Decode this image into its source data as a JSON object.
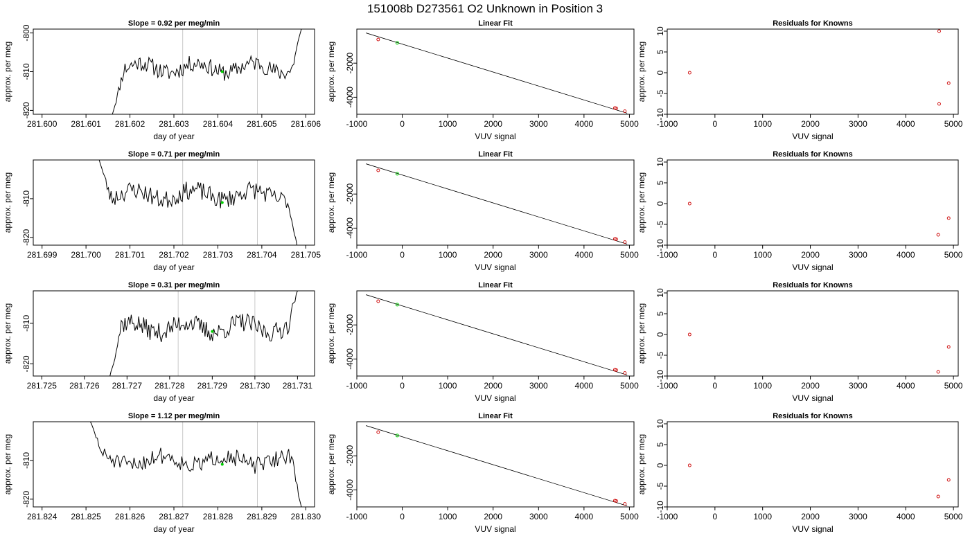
{
  "title": "151008b      D273561    O2 Unknown in Position  3",
  "colors": {
    "trace": "#000000",
    "marker": "#00cc00",
    "known": "#cc0000",
    "vline": "#c8c8c8"
  },
  "chart_data": [
    {
      "type": "line",
      "panel": "drift",
      "row": 0,
      "title": "Slope =  0.92  per meg/min",
      "xlabel": "day of year",
      "ylabel": "approx. per meg",
      "xlim": [
        281.5998,
        281.6062
      ],
      "ylim": [
        -821,
        -799
      ],
      "xticks": [
        281.6,
        281.601,
        281.602,
        281.603,
        281.604,
        281.605,
        281.606
      ],
      "xtick_labels": [
        "281.600",
        "281.601",
        "281.602",
        "281.603",
        "281.604",
        "281.605",
        "281.606"
      ],
      "yticks": [
        -800,
        -810,
        -820
      ],
      "ytick_labels": [
        "-800",
        "-810",
        "-820"
      ],
      "vlines": [
        281.6032,
        281.6049
      ],
      "trace": {
        "start": 281.6016,
        "end": 281.6059,
        "start_y": -821,
        "end_y": -799,
        "mean": -809,
        "amp": 2.2,
        "seed": 11
      },
      "marker": {
        "x": 281.6041,
        "y": -810
      }
    },
    {
      "type": "line",
      "panel": "drift",
      "row": 1,
      "title": "Slope =  0.71  per meg/min",
      "xlabel": "day of year",
      "ylabel": "approx. per meg",
      "xlim": [
        281.6988,
        281.7052
      ],
      "ylim": [
        -822,
        -800
      ],
      "xticks": [
        281.699,
        281.7,
        281.701,
        281.702,
        281.703,
        281.704,
        281.705
      ],
      "xtick_labels": [
        "281.699",
        "281.700",
        "281.701",
        "281.702",
        "281.703",
        "281.704",
        "281.705"
      ],
      "yticks": [
        -810,
        -820
      ],
      "ytick_labels": [
        "-810",
        "-820"
      ],
      "vlines": [
        281.7022,
        281.7039
      ],
      "trace": {
        "start": 281.7003,
        "end": 281.7048,
        "start_y": -800,
        "end_y": -822,
        "mean": -809,
        "amp": 2.4,
        "seed": 23
      },
      "marker": {
        "x": 281.7031,
        "y": -811
      }
    },
    {
      "type": "line",
      "panel": "drift",
      "row": 2,
      "title": "Slope =  0.31  per meg/min",
      "xlabel": "day of year",
      "ylabel": "approx. per meg",
      "xlim": [
        281.7248,
        281.7314
      ],
      "ylim": [
        -823,
        -802
      ],
      "xticks": [
        281.725,
        281.726,
        281.727,
        281.728,
        281.729,
        281.73,
        281.731
      ],
      "xtick_labels": [
        "281.725",
        "281.726",
        "281.727",
        "281.728",
        "281.729",
        "281.730",
        "281.731"
      ],
      "yticks": [
        -810,
        -820
      ],
      "ytick_labels": [
        "-810",
        "-820"
      ],
      "vlines": [
        281.7282,
        281.73
      ],
      "trace": {
        "start": 281.7266,
        "end": 281.731,
        "start_y": -823,
        "end_y": -802,
        "mean": -811,
        "amp": 2.4,
        "seed": 37
      },
      "marker": {
        "x": 281.729,
        "y": -812
      }
    },
    {
      "type": "line",
      "panel": "drift",
      "row": 3,
      "title": "Slope =  1.12  per meg/min",
      "xlabel": "day of year",
      "ylabel": "approx. per meg",
      "xlim": [
        281.8238,
        281.8302
      ],
      "ylim": [
        -822,
        -800
      ],
      "xticks": [
        281.824,
        281.825,
        281.826,
        281.827,
        281.828,
        281.829,
        281.83
      ],
      "xtick_labels": [
        "281.824",
        "281.825",
        "281.826",
        "281.827",
        "281.828",
        "281.829",
        "281.830"
      ],
      "yticks": [
        -810,
        -820
      ],
      "ytick_labels": [
        "-810",
        "-820"
      ],
      "vlines": [
        281.8272,
        281.8289
      ],
      "trace": {
        "start": 281.8251,
        "end": 281.8299,
        "start_y": -800,
        "end_y": -822,
        "mean": -810,
        "amp": 2.2,
        "seed": 51
      },
      "marker": {
        "x": 281.8281,
        "y": -811
      }
    },
    {
      "type": "scatter",
      "panel": "fit",
      "row": 0,
      "title": "Linear Fit",
      "xlabel": "VUV signal",
      "ylabel": "approx. per meg",
      "xlim": [
        -1000,
        5100
      ],
      "ylim": [
        -5000,
        0
      ],
      "xticks": [
        -1000,
        0,
        1000,
        2000,
        3000,
        4000,
        5000
      ],
      "xtick_labels": [
        "-1000",
        "0",
        "1000",
        "2000",
        "3000",
        "4000",
        "5000"
      ],
      "yticks": [
        -2000,
        -4000
      ],
      "ytick_labels": [
        "-2000",
        "-4000"
      ],
      "line": {
        "x": [
          -800,
          4950
        ],
        "y": [
          -226,
          -4940
        ]
      },
      "knowns": {
        "x": [
          -530,
          4680,
          4710,
          4900
        ],
        "y": [
          -610,
          -4630,
          -4650,
          -4820
        ]
      },
      "unknown": {
        "x": -110,
        "y": -810
      }
    },
    {
      "type": "scatter",
      "panel": "fit",
      "row": 1,
      "title": "Linear Fit",
      "xlabel": "VUV signal",
      "ylabel": "approx. per meg",
      "xlim": [
        -1000,
        5100
      ],
      "ylim": [
        -5000,
        0
      ],
      "xticks": [
        -1000,
        0,
        1000,
        2000,
        3000,
        4000,
        5000
      ],
      "xtick_labels": [
        "-1000",
        "0",
        "1000",
        "2000",
        "3000",
        "4000",
        "5000"
      ],
      "yticks": [
        -2000,
        -4000
      ],
      "ytick_labels": [
        "-2000",
        "-4000"
      ],
      "line": {
        "x": [
          -800,
          4950
        ],
        "y": [
          -226,
          -4940
        ]
      },
      "knowns": {
        "x": [
          -530,
          4680,
          4710,
          4900
        ],
        "y": [
          -610,
          -4630,
          -4650,
          -4820
        ]
      },
      "unknown": {
        "x": -110,
        "y": -810
      }
    },
    {
      "type": "scatter",
      "panel": "fit",
      "row": 2,
      "title": "Linear Fit",
      "xlabel": "VUV signal",
      "ylabel": "approx. per meg",
      "xlim": [
        -1000,
        5100
      ],
      "ylim": [
        -5000,
        0
      ],
      "xticks": [
        -1000,
        0,
        1000,
        2000,
        3000,
        4000,
        5000
      ],
      "xtick_labels": [
        "-1000",
        "0",
        "1000",
        "2000",
        "3000",
        "4000",
        "5000"
      ],
      "yticks": [
        -2000,
        -4000
      ],
      "ytick_labels": [
        "-2000",
        "-4000"
      ],
      "line": {
        "x": [
          -800,
          4950
        ],
        "y": [
          -226,
          -4940
        ]
      },
      "knowns": {
        "x": [
          -530,
          4680,
          4710,
          4900
        ],
        "y": [
          -610,
          -4630,
          -4650,
          -4820
        ]
      },
      "unknown": {
        "x": -110,
        "y": -810
      }
    },
    {
      "type": "scatter",
      "panel": "fit",
      "row": 3,
      "title": "Linear Fit",
      "xlabel": "VUV signal",
      "ylabel": "approx. per meg",
      "xlim": [
        -1000,
        5100
      ],
      "ylim": [
        -5000,
        0
      ],
      "xticks": [
        -1000,
        0,
        1000,
        2000,
        3000,
        4000,
        5000
      ],
      "xtick_labels": [
        "-1000",
        "0",
        "1000",
        "2000",
        "3000",
        "4000",
        "5000"
      ],
      "yticks": [
        -2000,
        -4000
      ],
      "ytick_labels": [
        "-2000",
        "-4000"
      ],
      "line": {
        "x": [
          -800,
          4950
        ],
        "y": [
          -226,
          -4940
        ]
      },
      "knowns": {
        "x": [
          -530,
          4680,
          4710,
          4900
        ],
        "y": [
          -610,
          -4630,
          -4650,
          -4820
        ]
      },
      "unknown": {
        "x": -110,
        "y": -810
      }
    },
    {
      "type": "scatter",
      "panel": "resid",
      "row": 0,
      "title": "Residuals for Knowns",
      "xlabel": "VUV signal",
      "ylabel": "approx. per meg",
      "xlim": [
        -1000,
        5100
      ],
      "ylim": [
        -10,
        10.5
      ],
      "xticks": [
        -1000,
        0,
        1000,
        2000,
        3000,
        4000,
        5000
      ],
      "xtick_labels": [
        "-1000",
        "0",
        "1000",
        "2000",
        "3000",
        "4000",
        "5000"
      ],
      "yticks": [
        10,
        5,
        0,
        -5,
        -10
      ],
      "ytick_labels": [
        "10",
        "5",
        "0",
        "-5",
        "-10"
      ],
      "points": {
        "x": [
          -530,
          4700,
          4700,
          4900
        ],
        "y": [
          0,
          10,
          -7.5,
          -2.5
        ]
      }
    },
    {
      "type": "scatter",
      "panel": "resid",
      "row": 1,
      "title": "Residuals for Knowns",
      "xlabel": "VUV signal",
      "ylabel": "approx. per meg",
      "xlim": [
        -1000,
        5100
      ],
      "ylim": [
        -10,
        10.5
      ],
      "xticks": [
        -1000,
        0,
        1000,
        2000,
        3000,
        4000,
        5000
      ],
      "xtick_labels": [
        "-1000",
        "0",
        "1000",
        "2000",
        "3000",
        "4000",
        "5000"
      ],
      "yticks": [
        10,
        5,
        0,
        -5,
        -10
      ],
      "ytick_labels": [
        "10",
        "5",
        "0",
        "-5",
        "-10"
      ],
      "points": {
        "x": [
          -530,
          4680,
          4900
        ],
        "y": [
          0,
          -7.5,
          -3.5
        ]
      }
    },
    {
      "type": "scatter",
      "panel": "resid",
      "row": 2,
      "title": "Residuals for Knowns",
      "xlabel": "VUV signal",
      "ylabel": "approx. per meg",
      "xlim": [
        -1000,
        5100
      ],
      "ylim": [
        -10,
        10.5
      ],
      "xticks": [
        -1000,
        0,
        1000,
        2000,
        3000,
        4000,
        5000
      ],
      "xtick_labels": [
        "-1000",
        "0",
        "1000",
        "2000",
        "3000",
        "4000",
        "5000"
      ],
      "yticks": [
        10,
        5,
        0,
        -5,
        -10
      ],
      "ytick_labels": [
        "10",
        "5",
        "0",
        "-5",
        "-10"
      ],
      "points": {
        "x": [
          -530,
          4680,
          4900
        ],
        "y": [
          0,
          -9,
          -3
        ]
      }
    },
    {
      "type": "scatter",
      "panel": "resid",
      "row": 3,
      "title": "Residuals for Knowns",
      "xlabel": "VUV signal",
      "ylabel": "approx. per meg",
      "xlim": [
        -1000,
        5100
      ],
      "ylim": [
        -10,
        10.5
      ],
      "xticks": [
        -1000,
        0,
        1000,
        2000,
        3000,
        4000,
        5000
      ],
      "xtick_labels": [
        "-1000",
        "0",
        "1000",
        "2000",
        "3000",
        "4000",
        "5000"
      ],
      "yticks": [
        10,
        5,
        0,
        -5,
        -10
      ],
      "ytick_labels": [
        "10",
        "5",
        "0",
        "-5",
        "-10"
      ],
      "points": {
        "x": [
          -530,
          4680,
          4900
        ],
        "y": [
          0,
          -7.5,
          -3.5
        ]
      }
    }
  ]
}
